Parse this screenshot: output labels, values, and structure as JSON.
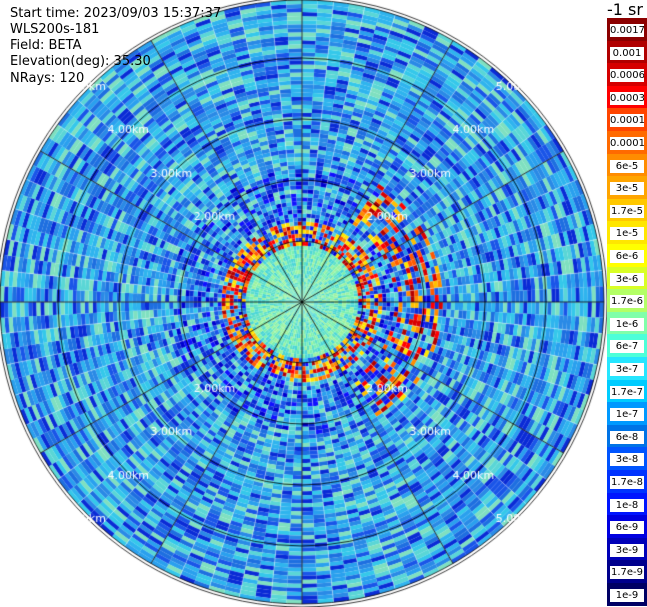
{
  "header": {
    "start_time": "Start time: 2023/09/03 15:37:37",
    "instrument": "WLS200s-181",
    "field": "Field: BETA",
    "elevation": "Elevation(deg): 35.30",
    "nrays": "NRays: 120"
  },
  "colorbar": {
    "unit_label": "-1 sr",
    "labels": [
      "0.0017",
      "0.001",
      "0.0006",
      "0.0003",
      "0.00017",
      "0.0001",
      "6e-5",
      "3e-5",
      "1.7e-5",
      "1e-5",
      "6e-6",
      "3e-6",
      "1.7e-6",
      "1e-6",
      "6e-7",
      "3e-7",
      "1.7e-7",
      "1e-7",
      "6e-8",
      "3e-8",
      "1.7e-8",
      "1e-8",
      "6e-9",
      "3e-9",
      "1.7e-9",
      "1e-9"
    ],
    "colors": [
      "#8b0000",
      "#b00000",
      "#d50000",
      "#ff0000",
      "#ff4500",
      "#ff6a00",
      "#ff8c00",
      "#ffa500",
      "#ffc800",
      "#ffe600",
      "#ffff00",
      "#d9ff26",
      "#b3ff66",
      "#80ffaa",
      "#4dffd9",
      "#26e6ff",
      "#00ccff",
      "#0099ff",
      "#0073e6",
      "#0055ff",
      "#0033ff",
      "#0015ff",
      "#0000e0",
      "#0000b8",
      "#00008c",
      "#000064"
    ]
  },
  "chart_data": {
    "type": "ppi",
    "field": "BETA",
    "elevation_deg": 35.3,
    "nrays": 120,
    "range_rings_km": [
      1,
      2,
      3,
      4,
      5
    ],
    "range_labels": [
      "2.00km",
      "3.00km",
      "4.00km",
      "5.00km"
    ],
    "radial_spokes": 12,
    "features": [
      {
        "description": "high-backscatter ring (red/orange)",
        "range_km": [
          0.9,
          1.35
        ]
      },
      {
        "description": "secondary arc on east side (red/orange)",
        "range_km": [
          1.5,
          2.3
        ]
      }
    ],
    "background_level": "1e-7 to 3e-8 (blue/cyan)"
  }
}
